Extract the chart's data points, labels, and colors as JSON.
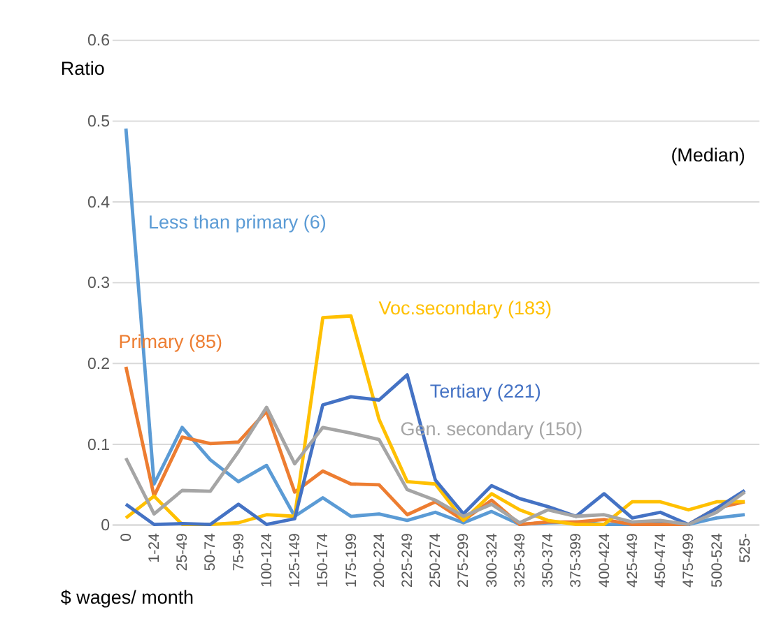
{
  "chart_data": {
    "type": "line",
    "xlabel": "$ wages/ month",
    "ylabel": "Ratio",
    "categories": [
      "0",
      "1-24",
      "25-49",
      "50-74",
      "75-99",
      "100-124",
      "125-149",
      "150-174",
      "175-199",
      "200-224",
      "225-249",
      "250-274",
      "275-299",
      "300-324",
      "325-349",
      "350-374",
      "375-399",
      "400-424",
      "425-449",
      "450-474",
      "475-499",
      "500-524",
      "525-"
    ],
    "series": [
      {
        "name": "Less than primary   (6)",
        "color": "#5b9bd5",
        "values": [
          0.49,
          0.05,
          0.12,
          0.08,
          0.053,
          0.073,
          0.01,
          0.033,
          0.01,
          0.013,
          0.005,
          0.015,
          0.002,
          0.016,
          0.0,
          0.002,
          0.003,
          0.0,
          0.0,
          0.003,
          0.0,
          0.008,
          0.012
        ]
      },
      {
        "name": "Primary   (85)",
        "color": "#ed7d31",
        "values": [
          0.195,
          0.035,
          0.108,
          0.1,
          0.102,
          0.14,
          0.04,
          0.066,
          0.05,
          0.049,
          0.012,
          0.028,
          0.005,
          0.03,
          0.0,
          0.003,
          0.003,
          0.006,
          0.0,
          0.0,
          0.0,
          0.02,
          0.028
        ]
      },
      {
        "name": "Voc.secondary (183)",
        "color": "#ffc000",
        "values": [
          0.008,
          0.035,
          0.0,
          0.0,
          0.002,
          0.012,
          0.01,
          0.256,
          0.258,
          0.13,
          0.053,
          0.05,
          0.005,
          0.038,
          0.018,
          0.005,
          0.0,
          0.0,
          0.028,
          0.028,
          0.018,
          0.028,
          0.028
        ]
      },
      {
        "name": "Tertiary (221)",
        "color": "#4472c4",
        "values": [
          0.025,
          0.0,
          0.001,
          0.0,
          0.025,
          0.0,
          0.007,
          0.148,
          0.158,
          0.154,
          0.185,
          0.055,
          0.013,
          0.048,
          0.032,
          0.022,
          0.01,
          0.038,
          0.008,
          0.015,
          0.0,
          0.02,
          0.042
        ]
      },
      {
        "name": "Gen. secondary   (150)",
        "color": "#a5a5a5",
        "values": [
          0.082,
          0.013,
          0.042,
          0.041,
          0.09,
          0.145,
          0.075,
          0.12,
          0.113,
          0.105,
          0.043,
          0.03,
          0.01,
          0.025,
          0.002,
          0.018,
          0.01,
          0.012,
          0.003,
          0.005,
          0.0,
          0.015,
          0.04
        ]
      }
    ],
    "ylim": [
      0,
      0.6
    ],
    "yticks": [
      0,
      0.1,
      0.2,
      0.3,
      0.4,
      0.5,
      0.6
    ],
    "grid": "y",
    "legend": false,
    "marker": "none",
    "line_style": "solid",
    "annotations": [
      "(Median)"
    ]
  }
}
